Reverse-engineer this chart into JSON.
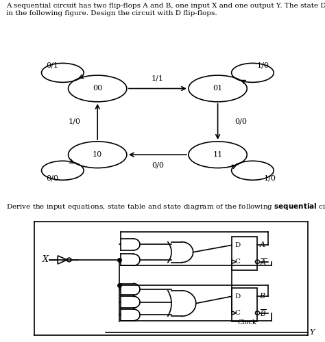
{
  "title_text": "A sequential circuit has two flip-flops A and B, one input X and one output Y. The state Diagram is shown\nin the following figure. Design the circuit with D flip-flops.",
  "derive_text": "Derive the input equations, state table and state diagram of the following sequential circuit.",
  "states": [
    "00",
    "01",
    "10",
    "11"
  ],
  "self_loop_labels": {
    "00": "0/1",
    "01": "1/0",
    "10": "0/0",
    "11": "1/0"
  },
  "background_color": "#ffffff",
  "circuit_bg": "#ede8e0"
}
